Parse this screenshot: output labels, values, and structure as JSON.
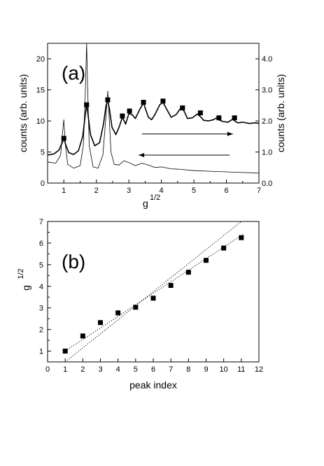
{
  "chart_data": [
    {
      "type": "line",
      "panel_label": "(a)",
      "xlabel": "g",
      "xlabel_superscript": "1/2",
      "ylabel_left": "counts  (arb. units)",
      "ylabel_right": "counts  (arb. units)",
      "xlim": [
        0.5,
        7
      ],
      "ylim_left": [
        0,
        22.5
      ],
      "ylim_right": [
        0,
        4.5
      ],
      "xticks": [
        "1",
        "2",
        "3",
        "4",
        "5",
        "6",
        "7"
      ],
      "yticks_left": [
        "0",
        "5",
        "10",
        "15",
        "20"
      ],
      "yticks_right": [
        "0.0",
        "1.0",
        "2.0",
        "3.0",
        "4.0"
      ],
      "grid": false,
      "series": [
        {
          "style": "thick",
          "axis": "left",
          "x": [
            0.5,
            0.7,
            0.85,
            0.95,
            1.0,
            1.05,
            1.15,
            1.3,
            1.45,
            1.58,
            1.66,
            1.7,
            1.74,
            1.82,
            1.95,
            2.1,
            2.22,
            2.3,
            2.35,
            2.4,
            2.48,
            2.6,
            2.7,
            2.8,
            2.9,
            3.0,
            3.1,
            3.2,
            3.35,
            3.45,
            3.5,
            3.6,
            3.7,
            3.8,
            3.95,
            4.05,
            4.15,
            4.3,
            4.45,
            4.6,
            4.7,
            4.8,
            4.95,
            5.1,
            5.2,
            5.3,
            5.45,
            5.6,
            5.7,
            5.8,
            5.9,
            6.05,
            6.2,
            6.25,
            6.35,
            6.5,
            6.7,
            6.9,
            7.0
          ],
          "y": [
            4.5,
            4.7,
            5.3,
            6.5,
            7.2,
            6.3,
            4.9,
            4.6,
            5.2,
            7.5,
            11.0,
            12.6,
            11.2,
            7.8,
            6.0,
            6.5,
            9.5,
            12.5,
            13.3,
            12.0,
            9.0,
            7.8,
            9.0,
            10.6,
            9.5,
            11.2,
            11.0,
            10.4,
            12.0,
            12.9,
            12.1,
            10.6,
            10.2,
            11.0,
            12.6,
            13.0,
            12.0,
            10.6,
            11.0,
            12.1,
            11.6,
            10.4,
            10.5,
            11.1,
            10.7,
            10.1,
            10.0,
            10.2,
            10.5,
            10.1,
            9.9,
            9.8,
            10.3,
            10.0,
            9.7,
            9.8,
            9.6,
            9.7,
            9.6
          ]
        },
        {
          "style": "thin",
          "axis": "left",
          "x": [
            0.5,
            0.75,
            0.9,
            0.95,
            1.0,
            1.05,
            1.12,
            1.3,
            1.5,
            1.6,
            1.66,
            1.7,
            1.73,
            1.78,
            1.9,
            2.05,
            2.2,
            2.3,
            2.35,
            2.4,
            2.45,
            2.55,
            2.7,
            2.85,
            3.0,
            3.2,
            3.4,
            3.6,
            3.8,
            4.0,
            4.3,
            4.6,
            5.0,
            5.5,
            6.0,
            6.5,
            7.0
          ],
          "y": [
            3.4,
            3.2,
            4.5,
            7.5,
            10.2,
            6.0,
            3.0,
            2.4,
            2.8,
            6.0,
            14.5,
            22.5,
            16.0,
            6.0,
            2.6,
            2.4,
            4.5,
            11.0,
            14.8,
            10.0,
            5.0,
            3.0,
            2.9,
            3.6,
            3.3,
            2.8,
            3.2,
            2.9,
            2.5,
            2.6,
            2.3,
            2.2,
            2.0,
            1.9,
            1.8,
            1.7,
            1.6
          ]
        }
      ],
      "markers": {
        "x": [
          1.0,
          1.7,
          2.35,
          2.8,
          3.02,
          3.45,
          4.05,
          4.65,
          5.2,
          5.77,
          6.25
        ],
        "y": [
          7.2,
          12.6,
          13.4,
          10.8,
          11.6,
          13.0,
          13.2,
          12.1,
          11.3,
          10.5,
          10.5
        ]
      },
      "arrows": [
        {
          "from_x": 3.4,
          "to_x": 6.2,
          "y": 7.9,
          "direction": "right"
        },
        {
          "from_x": 6.1,
          "to_x": 3.3,
          "y": 4.5,
          "direction": "left"
        }
      ]
    },
    {
      "type": "scatter",
      "panel_label": "(b)",
      "xlabel": "peak index",
      "ylabel": "g",
      "ylabel_superscript": "1/2",
      "xlim": [
        0,
        12
      ],
      "ylim": [
        0.5,
        7
      ],
      "xticks": [
        "0",
        "1",
        "2",
        "3",
        "4",
        "5",
        "6",
        "7",
        "8",
        "9",
        "10",
        "11",
        "12"
      ],
      "yticks": [
        "1",
        "2",
        "3",
        "4",
        "5",
        "6",
        "7"
      ],
      "grid": false,
      "series": [
        {
          "x": [
            1,
            2,
            3,
            4,
            5,
            6,
            7,
            8,
            9,
            10,
            11
          ],
          "y": [
            1.0,
            1.7,
            2.32,
            2.77,
            3.03,
            3.45,
            4.04,
            4.65,
            5.2,
            5.77,
            6.25
          ]
        }
      ],
      "fit_lines": [
        {
          "x": [
            0.9,
            11.1
          ],
          "y": [
            0.95,
            6.4
          ],
          "style": "dotted"
        },
        {
          "x": [
            1.0,
            11.0
          ],
          "y": [
            0.5,
            7.0
          ],
          "style": "dotted"
        }
      ]
    }
  ]
}
